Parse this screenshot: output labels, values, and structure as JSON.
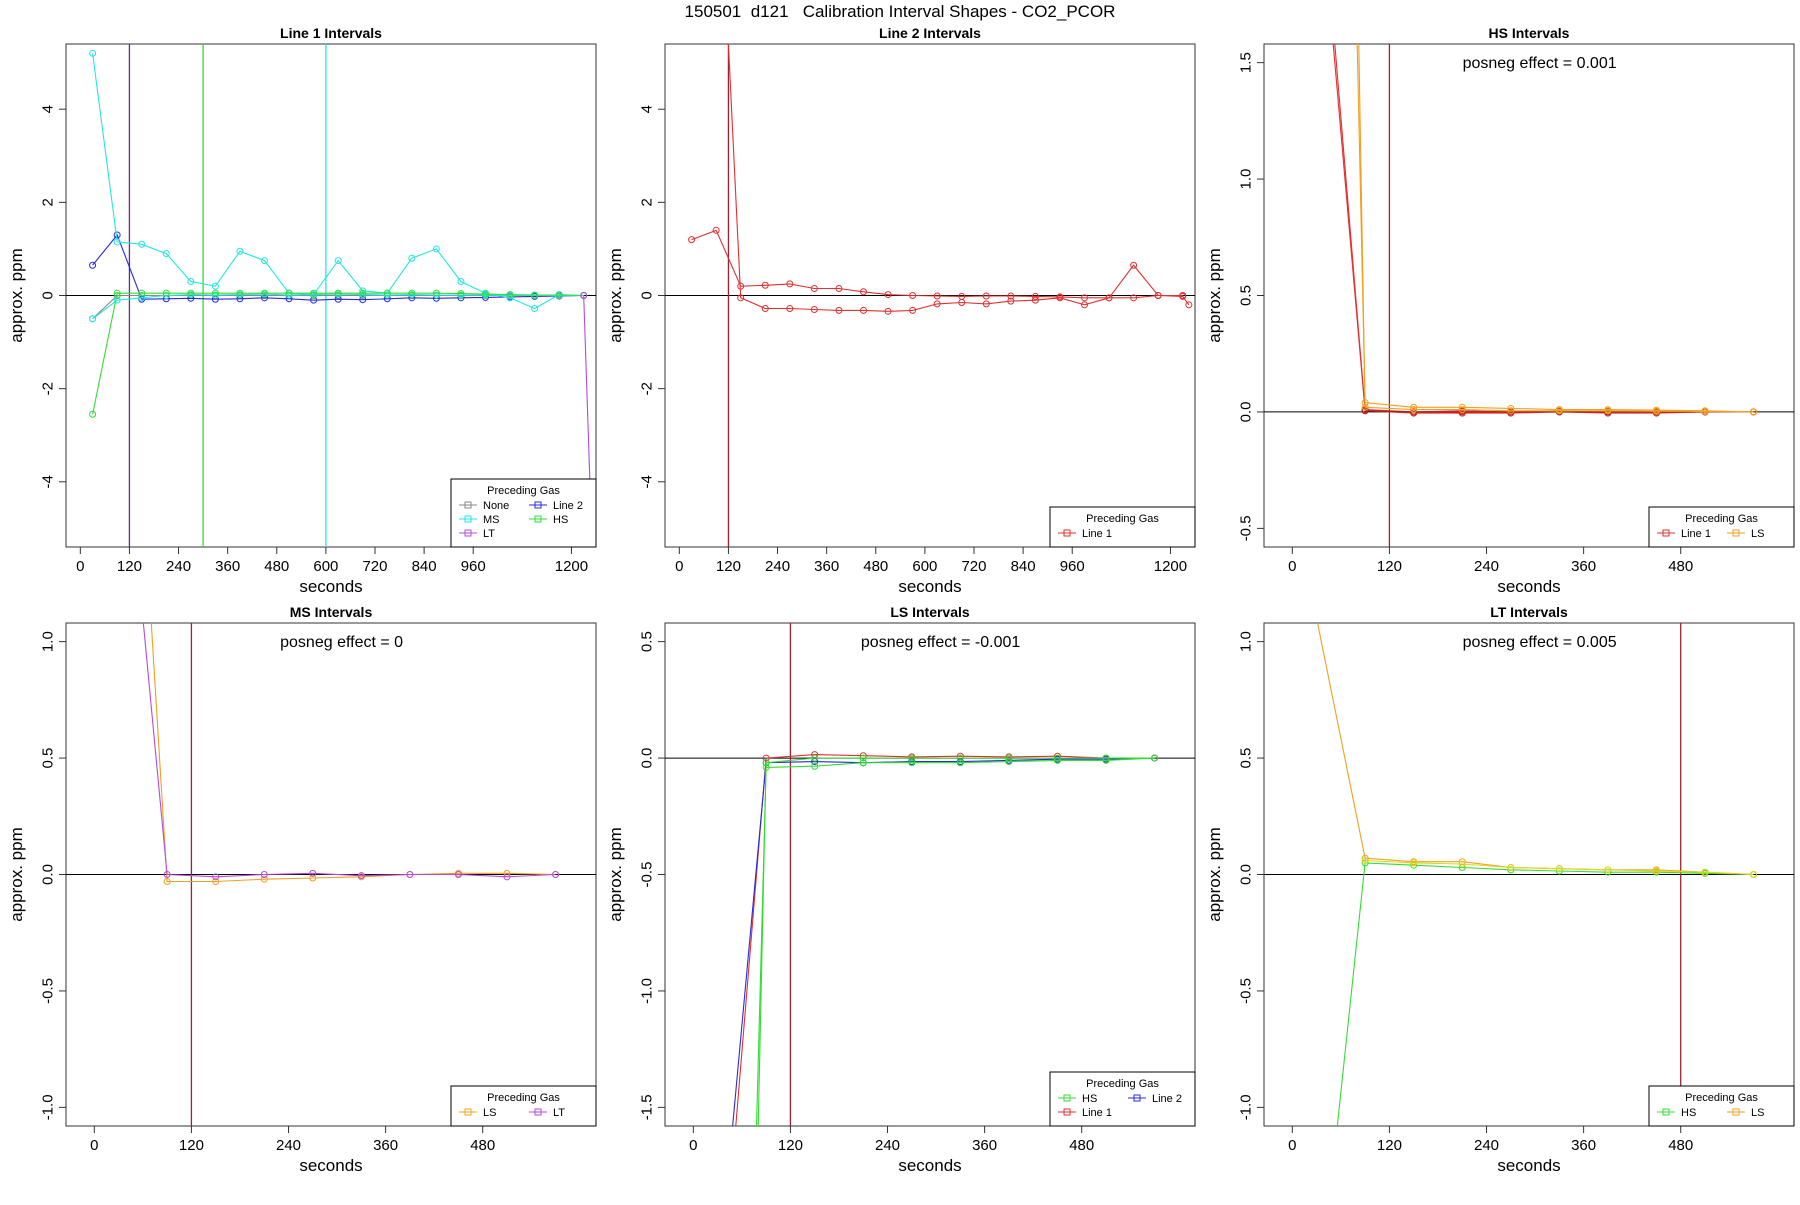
{
  "figure": {
    "title": "150501  d121   Calibration Interval Shapes - CO2_PCOR"
  },
  "chart_data": [
    {
      "type": "line",
      "title": "Line 1 Intervals",
      "xlabel": "seconds",
      "ylabel": "approx. ppm",
      "xlim": [
        -35,
        1260
      ],
      "ylim": [
        -5.4,
        5.4
      ],
      "xticks": [
        0,
        120,
        240,
        360,
        480,
        600,
        720,
        840,
        960,
        1200
      ],
      "yticks": [
        -4,
        -2,
        0,
        2,
        4
      ],
      "vlines": [
        {
          "x": 120,
          "color": "#6a2a86"
        },
        {
          "x": 300,
          "color": "#33dd33"
        },
        {
          "x": 600,
          "color": "#22e6e6"
        }
      ],
      "annotation": "",
      "legend": {
        "title": "Preceding Gas",
        "position": "bottom-right",
        "entries": [
          {
            "label": "None",
            "color": "#888888"
          },
          {
            "label": "Line 2",
            "color": "#2a2ad8"
          },
          {
            "label": "MS",
            "color": "#22e6e6"
          },
          {
            "label": "HS",
            "color": "#33dd33"
          },
          {
            "label": "LT",
            "color": "#b44ae0"
          }
        ]
      },
      "series": [
        {
          "color": "#888888",
          "x": [
            30,
            90,
            150,
            210,
            270,
            330,
            390,
            450,
            510,
            570,
            630,
            690,
            750,
            810,
            870,
            930,
            990,
            1050,
            1110,
            1170,
            1230
          ],
          "y": [
            -0.5,
            0,
            0,
            0,
            0,
            0,
            0,
            0,
            0,
            0,
            0,
            0,
            0,
            0,
            0,
            0,
            0,
            0,
            0,
            0,
            0
          ]
        },
        {
          "color": "#2a2ad8",
          "x": [
            30,
            90,
            150,
            210,
            270,
            330,
            390,
            450,
            510,
            570,
            630,
            690,
            750,
            810,
            870,
            930,
            990,
            1050,
            1110,
            1170,
            1230
          ],
          "y": [
            0.65,
            1.3,
            -0.08,
            -0.07,
            -0.06,
            -0.08,
            -0.07,
            -0.05,
            -0.07,
            -0.1,
            -0.08,
            -0.09,
            -0.07,
            -0.05,
            -0.06,
            -0.05,
            -0.04,
            -0.03,
            -0.02,
            -0.01,
            0
          ]
        },
        {
          "color": "#22e6e6",
          "x": [
            30,
            90,
            150,
            210,
            270,
            330,
            390,
            450,
            510,
            570,
            630,
            690,
            750,
            810,
            870,
            930,
            990,
            1050,
            1110,
            1170,
            1230
          ],
          "y": [
            5.2,
            1.15,
            1.1,
            0.9,
            0.3,
            0.2,
            0.95,
            0.75,
            0.05,
            0.02,
            0.75,
            0.1,
            0.05,
            0.8,
            1.0,
            0.3,
            0.05,
            -0.05,
            -0.28,
            0.02,
            0
          ]
        },
        {
          "color": "#22e6e6",
          "x": [
            30,
            90,
            150,
            210,
            270,
            330,
            390,
            450,
            510,
            570,
            630,
            690,
            750,
            810,
            870,
            930,
            990,
            1050,
            1110,
            1170,
            1230
          ],
          "y": [
            -0.5,
            -0.1,
            -0.05,
            0,
            0.02,
            0.01,
            0.02,
            0.03,
            0.01,
            0.02,
            0.03,
            0.02,
            0.01,
            0.02,
            0.01,
            0.01,
            0.01,
            0,
            0,
            0,
            0
          ]
        },
        {
          "color": "#33dd33",
          "x": [
            30,
            90,
            150,
            210,
            270,
            330,
            390,
            450,
            510,
            570,
            630,
            690,
            750,
            810,
            870,
            930,
            990,
            1050,
            1110,
            1170,
            1230
          ],
          "y": [
            -2.55,
            0.05,
            0.05,
            0.05,
            0.05,
            0.05,
            0.05,
            0.05,
            0.05,
            0.05,
            0.05,
            0.05,
            0.05,
            0.05,
            0.05,
            0.04,
            0.03,
            0.02,
            0.01,
            0.01,
            0
          ]
        },
        {
          "color": "#b44ae0",
          "x": [
            1230,
            1245
          ],
          "y": [
            0,
            -4.0
          ]
        }
      ]
    },
    {
      "type": "line",
      "title": "Line 2 Intervals",
      "xlabel": "seconds",
      "ylabel": "approx. ppm",
      "xlim": [
        -35,
        1260
      ],
      "ylim": [
        -5.4,
        5.4
      ],
      "xticks": [
        0,
        120,
        240,
        360,
        480,
        600,
        720,
        840,
        960,
        1200
      ],
      "yticks": [
        -4,
        -2,
        0,
        2,
        4
      ],
      "vlines": [
        {
          "x": 120,
          "color": "#a02030"
        }
      ],
      "annotation": "",
      "legend": {
        "title": "Preceding Gas",
        "position": "bottom-right",
        "entries": [
          {
            "label": "Line 1",
            "color": "#e03030"
          }
        ]
      },
      "series": [
        {
          "color": "#e03030",
          "x": [
            30,
            90,
            150,
            210,
            270,
            330,
            390,
            450,
            510,
            570,
            630,
            690,
            750,
            810,
            870,
            930,
            990,
            1050,
            1110,
            1170,
            1230,
            1245
          ],
          "y": [
            1.2,
            1.4,
            0.2,
            0.22,
            0.25,
            0.15,
            0.15,
            0.08,
            0.02,
            0.0,
            -0.01,
            -0.02,
            -0.01,
            -0.01,
            -0.02,
            -0.03,
            -0.05,
            -0.05,
            0.65,
            0.0,
            -0.02,
            -0.2
          ]
        },
        {
          "color": "#e03030",
          "x": [
            120,
            150,
            210,
            270,
            330,
            390,
            450,
            510,
            570,
            630,
            690,
            750,
            810,
            870,
            930,
            990,
            1050,
            1110,
            1170,
            1230
          ],
          "y": [
            5.4,
            -0.05,
            -0.28,
            -0.28,
            -0.3,
            -0.32,
            -0.32,
            -0.34,
            -0.32,
            -0.18,
            -0.15,
            -0.18,
            -0.12,
            -0.1,
            -0.05,
            -0.2,
            -0.05,
            -0.05,
            0.0,
            0.0
          ]
        }
      ]
    },
    {
      "type": "line",
      "title": "HS Intervals",
      "xlabel": "seconds",
      "ylabel": "approx. ppm",
      "xlim": [
        -35,
        620
      ],
      "ylim": [
        -0.58,
        1.58
      ],
      "xticks": [
        0,
        120,
        240,
        360,
        480
      ],
      "yticks": [
        -0.5,
        0.0,
        0.5,
        1.0,
        1.5
      ],
      "vlines": [
        {
          "x": 120,
          "color": "#a02030"
        }
      ],
      "annotation": "posneg effect = 0.001",
      "legend": {
        "title": "Preceding Gas",
        "position": "bottom-right",
        "entries": [
          {
            "label": "Line 1",
            "color": "#e03030"
          },
          {
            "label": "LS",
            "color": "#f0a020"
          }
        ]
      },
      "series": [
        {
          "color": "#e03030",
          "x": [
            50,
            90,
            150,
            210,
            270,
            330,
            390,
            450,
            510,
            570
          ],
          "y": [
            1.6,
            0.005,
            -0.005,
            -0.005,
            -0.005,
            0.0,
            -0.005,
            -0.005,
            0.0,
            0.0
          ]
        },
        {
          "color": "#e03030",
          "x": [
            52,
            90,
            150,
            210,
            270,
            330,
            390,
            450,
            510,
            570
          ],
          "y": [
            1.6,
            0.01,
            0.0,
            0.005,
            0.0,
            0.005,
            0.0,
            0.0,
            0.0,
            0.0
          ]
        },
        {
          "color": "#a02020",
          "x": [
            90,
            150,
            210,
            270,
            330,
            390,
            450,
            510,
            570
          ],
          "y": [
            0.005,
            0.0,
            0.0,
            0.0,
            0.0,
            0.0,
            0.0,
            0.0,
            0.0
          ]
        },
        {
          "color": "#f0a020",
          "x": [
            80,
            90,
            150,
            210,
            270,
            330,
            390,
            450,
            510,
            570
          ],
          "y": [
            1.6,
            0.04,
            0.02,
            0.02,
            0.015,
            0.01,
            0.01,
            0.008,
            0.005,
            0.0
          ]
        },
        {
          "color": "#f0a020",
          "x": [
            82,
            90,
            150,
            210,
            270,
            330,
            390,
            450,
            510,
            570
          ],
          "y": [
            1.6,
            0.02,
            0.01,
            0.01,
            0.005,
            0.005,
            0.005,
            0.003,
            0.002,
            0.0
          ]
        }
      ]
    },
    {
      "type": "line",
      "title": "MS Intervals",
      "xlabel": "seconds",
      "ylabel": "approx. ppm",
      "xlim": [
        -35,
        620
      ],
      "ylim": [
        -1.08,
        1.08
      ],
      "xticks": [
        0,
        120,
        240,
        360,
        480
      ],
      "yticks": [
        -1.0,
        -0.5,
        0.0,
        0.5,
        1.0
      ],
      "vlines": [
        {
          "x": 120,
          "color": "#a02030"
        }
      ],
      "annotation": "posneg effect = 0",
      "legend": {
        "title": "Preceding Gas",
        "position": "bottom-right",
        "entries": [
          {
            "label": "LS",
            "color": "#f0a020"
          },
          {
            "label": "LT",
            "color": "#b44ae0"
          }
        ]
      },
      "series": [
        {
          "color": "#f0a020",
          "x": [
            70,
            90,
            150,
            210,
            270,
            330,
            390,
            450,
            510,
            570
          ],
          "y": [
            1.1,
            -0.03,
            -0.03,
            -0.02,
            -0.015,
            -0.01,
            0.0,
            0.005,
            0.005,
            0.0
          ]
        },
        {
          "color": "#b44ae0",
          "x": [
            60,
            90,
            150,
            210,
            270,
            330,
            390,
            450,
            510,
            570
          ],
          "y": [
            1.1,
            0.0,
            -0.01,
            0.0,
            0.005,
            -0.005,
            0.0,
            0.0,
            -0.01,
            0.0
          ]
        }
      ]
    },
    {
      "type": "line",
      "title": "LS Intervals",
      "xlabel": "seconds",
      "ylabel": "approx. ppm",
      "xlim": [
        -35,
        620
      ],
      "ylim": [
        -1.58,
        0.58
      ],
      "xticks": [
        0,
        120,
        240,
        360,
        480
      ],
      "yticks": [
        -1.5,
        -1.0,
        -0.5,
        0.0,
        0.5
      ],
      "vlines": [
        {
          "x": 120,
          "color": "#a02030"
        }
      ],
      "annotation": "posneg effect = -0.001",
      "legend": {
        "title": "Preceding Gas",
        "position": "bottom-right",
        "entries": [
          {
            "label": "HS",
            "color": "#33dd33"
          },
          {
            "label": "Line 2",
            "color": "#2a2ad8"
          },
          {
            "label": "Line 1",
            "color": "#e03030"
          }
        ]
      },
      "series": [
        {
          "color": "#e03030",
          "x": [
            52,
            90,
            150,
            210,
            270,
            330,
            390,
            450,
            510,
            570
          ],
          "y": [
            -1.6,
            0.0,
            0.015,
            0.01,
            0.005,
            0.008,
            0.005,
            0.008,
            0.0,
            0.0
          ]
        },
        {
          "color": "#2a2ad8",
          "x": [
            48,
            90,
            150,
            210,
            270,
            330,
            390,
            450,
            510,
            570
          ],
          "y": [
            -1.6,
            -0.02,
            -0.015,
            -0.02,
            -0.015,
            -0.015,
            -0.01,
            -0.005,
            -0.005,
            0.0
          ]
        },
        {
          "color": "#33dd33",
          "x": [
            78,
            90,
            150,
            210,
            270,
            330,
            390,
            450,
            510,
            570
          ],
          "y": [
            -1.6,
            -0.04,
            -0.035,
            -0.02,
            -0.02,
            -0.02,
            -0.015,
            -0.01,
            -0.01,
            0.0
          ]
        },
        {
          "color": "#33dd33",
          "x": [
            80,
            90,
            150,
            210,
            270,
            330,
            390,
            450,
            510,
            570
          ],
          "y": [
            -1.6,
            -0.02,
            0.0,
            0.0,
            0.0,
            0.0,
            0.0,
            0.0,
            0.0,
            0.0
          ]
        }
      ]
    },
    {
      "type": "line",
      "title": "LT Intervals",
      "xlabel": "seconds",
      "ylabel": "approx. ppm",
      "xlim": [
        -35,
        620
      ],
      "ylim": [
        -1.08,
        1.08
      ],
      "xticks": [
        0,
        120,
        240,
        360,
        480
      ],
      "yticks": [
        -1.0,
        -0.5,
        0.0,
        0.5,
        1.0
      ],
      "vlines": [
        {
          "x": 480,
          "color": "#a02030"
        }
      ],
      "annotation": "posneg effect = 0.005",
      "legend": {
        "title": "Preceding Gas",
        "position": "bottom-right",
        "entries": [
          {
            "label": "HS",
            "color": "#33dd33"
          },
          {
            "label": "LS",
            "color": "#f0a020"
          }
        ]
      },
      "series": [
        {
          "color": "#33dd33",
          "x": [
            55,
            90,
            150,
            210,
            270,
            330,
            390,
            450,
            510,
            570
          ],
          "y": [
            -1.1,
            0.05,
            0.04,
            0.03,
            0.02,
            0.015,
            0.01,
            0.01,
            0.005,
            0.0
          ]
        },
        {
          "color": "#f0a020",
          "x": [
            30,
            90,
            150,
            210,
            270,
            330,
            390,
            450,
            510,
            570
          ],
          "y": [
            1.1,
            0.07,
            0.055,
            0.055,
            0.03,
            0.025,
            0.02,
            0.02,
            0.01,
            0.0
          ]
        },
        {
          "color": "#d8d820",
          "x": [
            90,
            150,
            210,
            270,
            330,
            390,
            450,
            510,
            570
          ],
          "y": [
            0.06,
            0.05,
            0.045,
            0.03,
            0.025,
            0.02,
            0.015,
            0.01,
            0.0
          ]
        }
      ]
    }
  ]
}
